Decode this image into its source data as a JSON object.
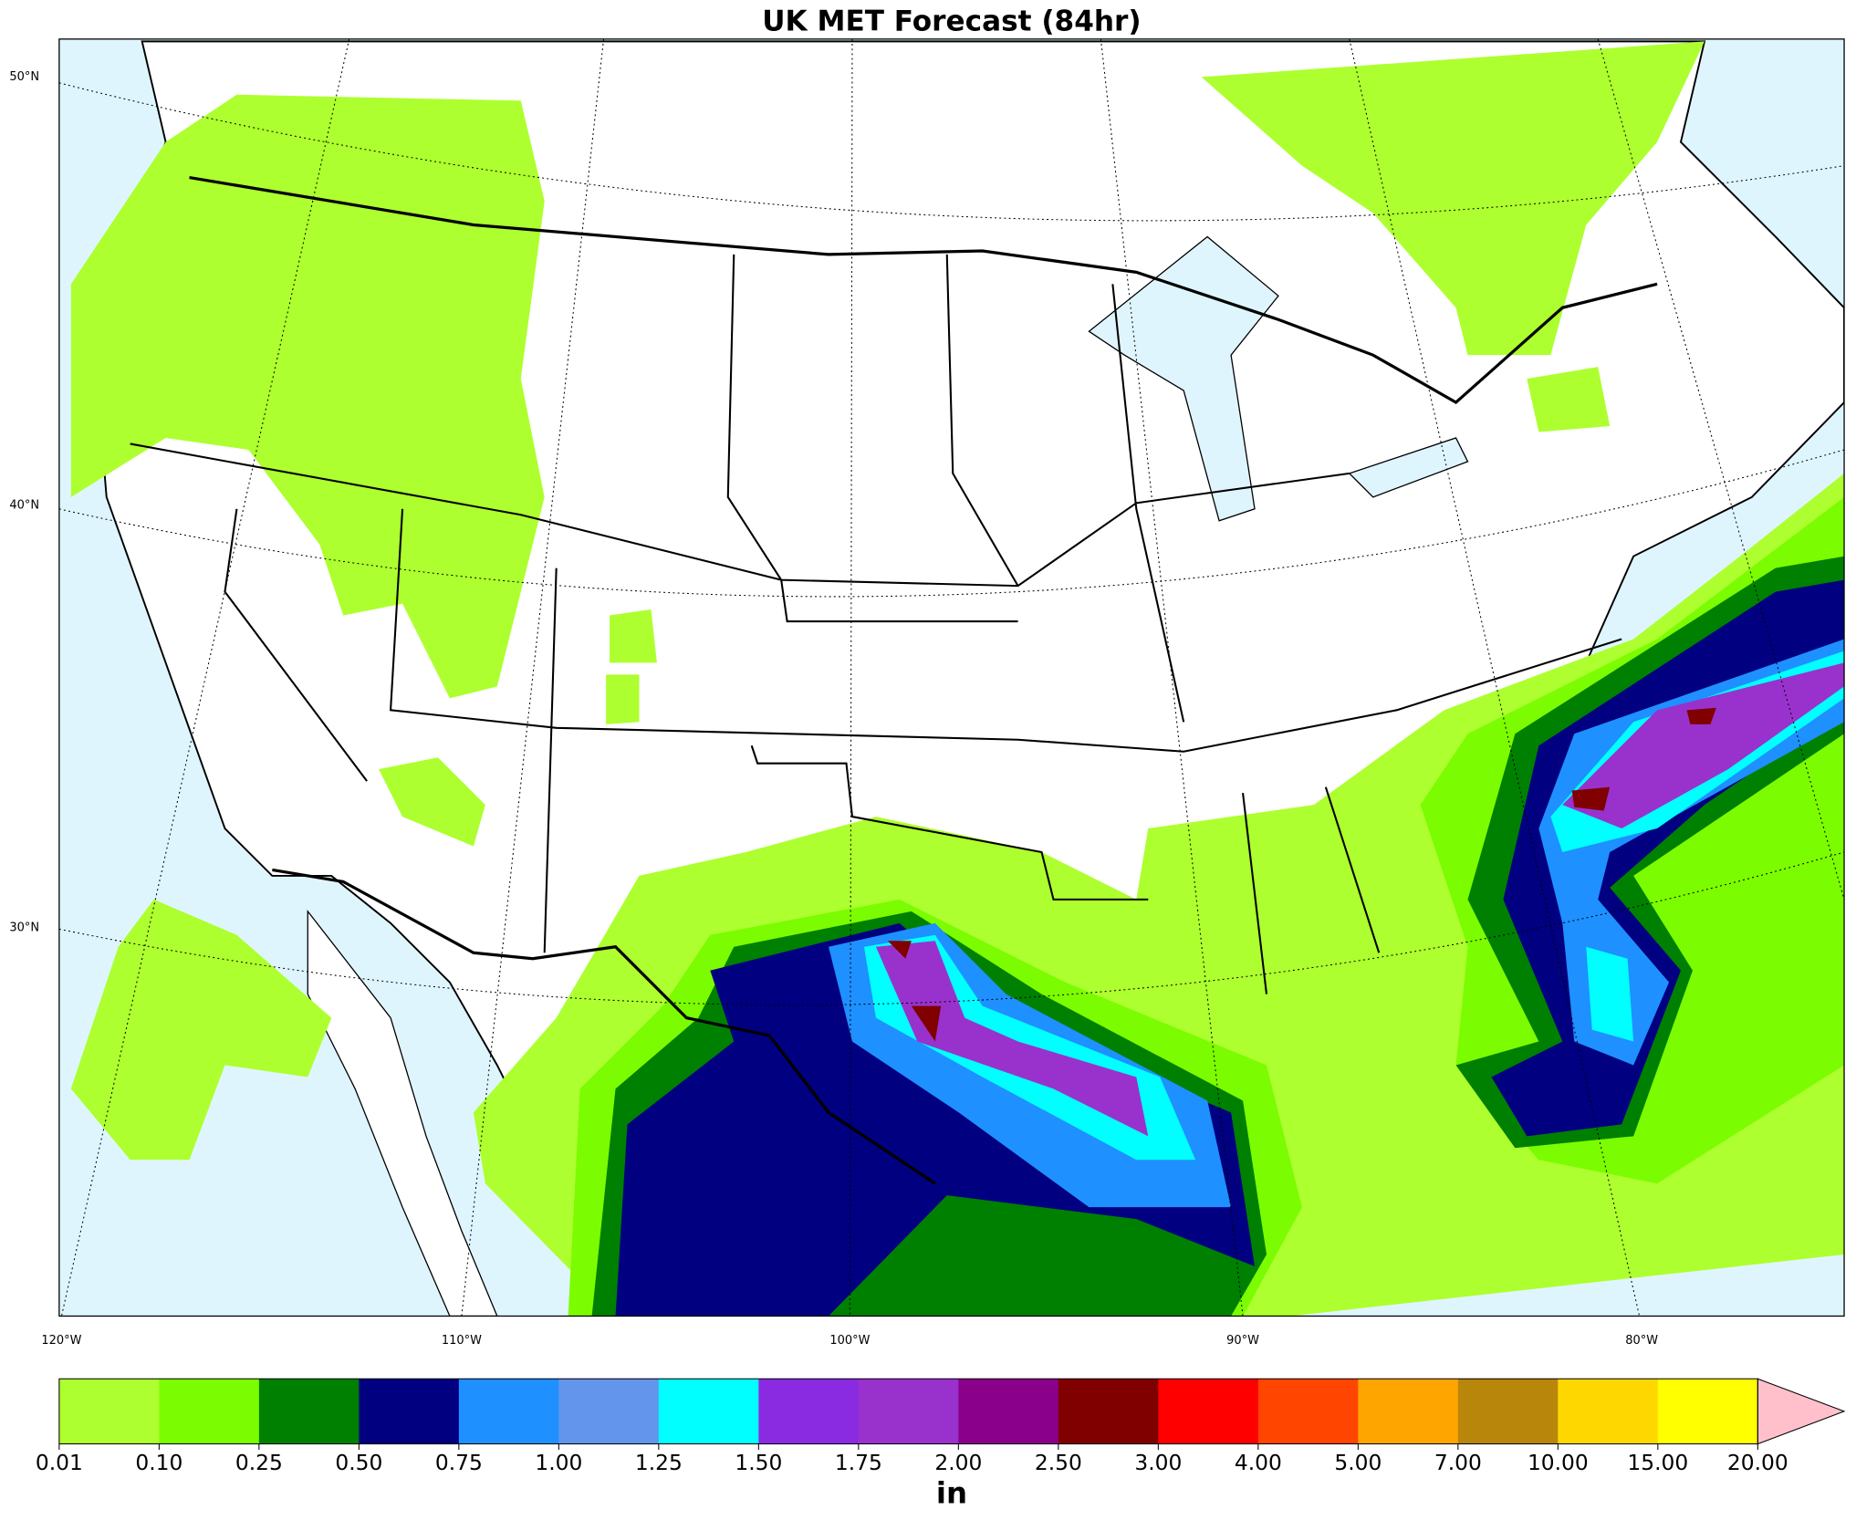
{
  "title": "UK MET Forecast (84hr)",
  "map": {
    "lat_labels": [
      "50°N",
      "40°N",
      "30°N"
    ],
    "lon_labels": [
      "120°W",
      "110°W",
      "100°W",
      "90°W",
      "80°W"
    ]
  },
  "colorbar": {
    "ticks": [
      "0.01",
      "0.10",
      "0.25",
      "0.50",
      "0.75",
      "1.00",
      "1.25",
      "1.50",
      "1.75",
      "2.00",
      "2.50",
      "3.00",
      "4.00",
      "5.00",
      "7.00",
      "10.00",
      "15.00",
      "20.00"
    ],
    "colors": [
      "#adff2f",
      "#7cfc00",
      "#008000",
      "#000080",
      "#1e90ff",
      "#6495ed",
      "#00ffff",
      "#8a2be2",
      "#9932cc",
      "#8b008b",
      "#800000",
      "#ff0000",
      "#ff4500",
      "#ffa500",
      "#b8860b",
      "#ffd700",
      "#ffff00"
    ],
    "extend_color": "#ffc0cb",
    "unit": "in"
  }
}
